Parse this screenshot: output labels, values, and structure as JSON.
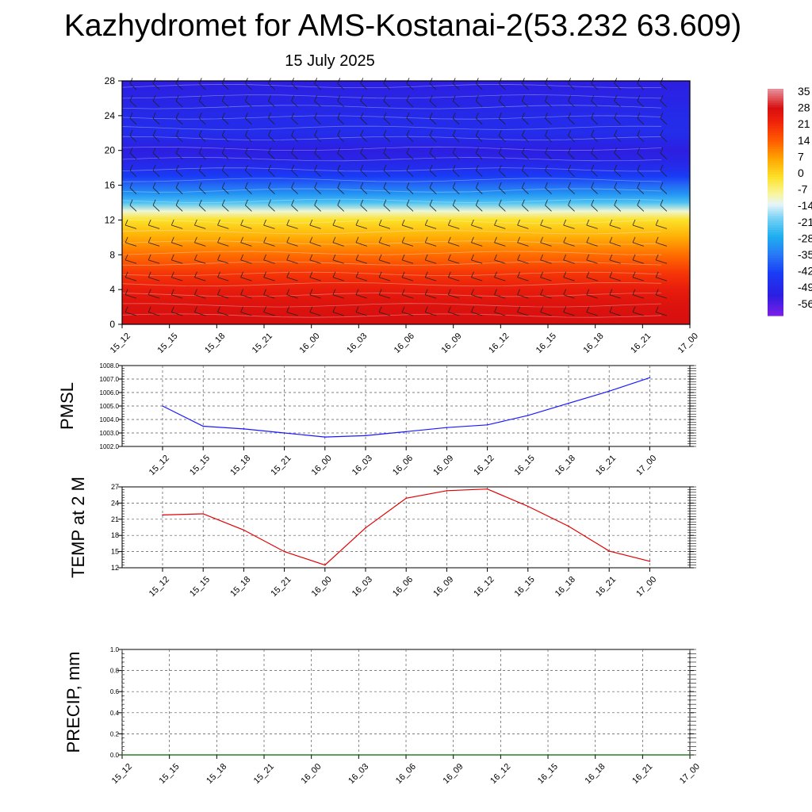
{
  "header": {
    "title": "Kazhydromet for AMS-Kostanai-2(53.232 63.609)",
    "subtitle": "15 July 2025"
  },
  "colors": {
    "pmsl_line": "#1a1aff",
    "temp_line": "#e00000",
    "precip_line": "#006000",
    "grid": "#555555"
  },
  "chart_data": [
    {
      "type": "heatmap",
      "name": "vertical-section",
      "title": "",
      "x_tick_labels": [
        "15_12",
        "15_15",
        "15_18",
        "15_21",
        "16_00",
        "16_03",
        "16_06",
        "16_09",
        "16_12",
        "16_15",
        "16_18",
        "16_21",
        "17_00"
      ],
      "y_tick_labels": [
        "0",
        "4",
        "8",
        "12",
        "16",
        "20",
        "24",
        "28"
      ],
      "ylim": [
        0,
        28
      ],
      "colorbar_labels": [
        "35",
        "28",
        "21",
        "14",
        "7",
        "0",
        "-7",
        "-14",
        "-21",
        "-28",
        "-35",
        "-42",
        "-49",
        "-56"
      ],
      "colorbar_range": [
        -60,
        38
      ],
      "level_temperature_profile": {
        "levels": [
          0,
          2,
          4,
          6,
          8,
          10,
          12,
          13,
          14,
          15,
          16,
          17,
          18,
          19,
          20,
          22,
          24,
          26,
          28
        ],
        "temperature": [
          30,
          29,
          26,
          21,
          14,
          7,
          0,
          -10,
          -22,
          -30,
          -36,
          -42,
          -47,
          -50,
          -52,
          -47,
          -48,
          -50,
          -52
        ]
      },
      "grid": false,
      "wind_barbs": true
    },
    {
      "type": "line",
      "name": "pmsl",
      "ylabel": "PMSL",
      "x": [
        "15_12",
        "15_15",
        "15_18",
        "15_21",
        "16_00",
        "16_03",
        "16_06",
        "16_09",
        "16_12",
        "16_15",
        "16_18",
        "16_21",
        "17_00"
      ],
      "values": [
        1005.0,
        1003.5,
        1003.3,
        1003.0,
        1002.7,
        1002.8,
        1003.1,
        1003.4,
        1003.6,
        1004.3,
        1005.2,
        1006.1,
        1007.1
      ],
      "ylim": [
        1002.0,
        1008.0
      ],
      "y_tick_labels": [
        "1002.0",
        "1003.0",
        "1004.0",
        "1005.0",
        "1006.0",
        "1007.0",
        "1008.0"
      ],
      "grid": true
    },
    {
      "type": "line",
      "name": "temp-2m",
      "ylabel": "TEMP at 2 M",
      "x": [
        "15_12",
        "15_15",
        "15_18",
        "15_21",
        "16_00",
        "16_03",
        "16_06",
        "16_09",
        "16_12",
        "16_15",
        "16_18",
        "16_21",
        "17_00"
      ],
      "values": [
        21.8,
        22.0,
        19.0,
        15.0,
        12.5,
        19.4,
        24.9,
        26.3,
        26.6,
        23.4,
        19.7,
        15.1,
        13.2
      ],
      "ylim": [
        12,
        27
      ],
      "y_tick_labels": [
        "12",
        "15",
        "18",
        "21",
        "24",
        "27"
      ],
      "grid": true
    },
    {
      "type": "line",
      "name": "precip",
      "ylabel": "PRECIP, mm",
      "x_tick_labels": [
        "15_12",
        "15_15",
        "15_18",
        "15_21",
        "16_00",
        "16_03",
        "16_06",
        "16_09",
        "16_12",
        "16_15",
        "16_18",
        "16_21",
        "17_00"
      ],
      "values": [
        0,
        0,
        0,
        0,
        0,
        0,
        0,
        0,
        0,
        0,
        0,
        0,
        0
      ],
      "ylim": [
        0.0,
        1.0
      ],
      "y_tick_labels": [
        "0.0",
        "0.2",
        "0.4",
        "0.6",
        "0.8",
        "1.0"
      ],
      "grid": true
    }
  ]
}
